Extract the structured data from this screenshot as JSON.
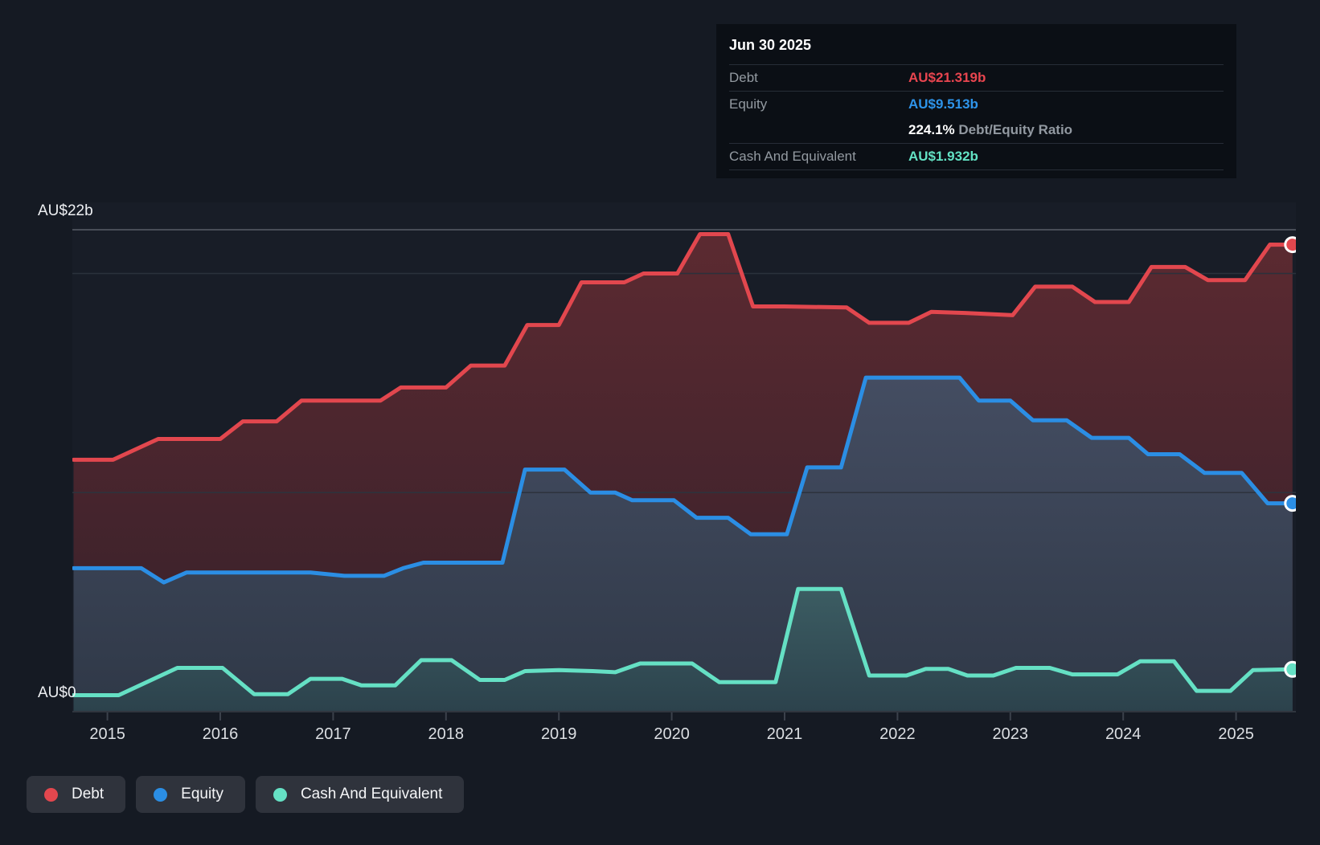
{
  "tooltip": {
    "date": "Jun 30 2025",
    "rows": [
      {
        "label": "Debt",
        "value": "AU$21.319b"
      },
      {
        "label": "Equity",
        "value": "AU$9.513b"
      },
      {
        "label": "Cash And Equivalent",
        "value": "AU$1.932b"
      }
    ],
    "ratio": {
      "value": "224.1%",
      "suffix": " Debt/Equity Ratio"
    }
  },
  "legend": {
    "items": [
      {
        "label": "Debt"
      },
      {
        "label": "Equity"
      },
      {
        "label": "Cash And Equivalent"
      }
    ]
  },
  "chart_data": {
    "type": "area",
    "x_ticks": [
      2015,
      2016,
      2017,
      2018,
      2019,
      2020,
      2021,
      2022,
      2023,
      2024,
      2025
    ],
    "x_range": [
      2014.7,
      2025.5
    ],
    "y_axis": {
      "labels": [
        {
          "value": 22,
          "text": "AU$22b"
        },
        {
          "value": 0,
          "text": "AU$0"
        }
      ],
      "gridline_values": [
        22,
        20,
        10,
        0
      ],
      "ylim": [
        0,
        22
      ]
    },
    "series": [
      {
        "name": "Debt",
        "color": "#e2474e",
        "fill_top": "#5c2a31",
        "fill_bottom": "#34202a",
        "end_label": "AU$21.319b",
        "points": [
          [
            2014.7,
            11.5
          ],
          [
            2015.05,
            11.5
          ],
          [
            2015.45,
            12.45
          ],
          [
            2016.0,
            12.45
          ],
          [
            2016.2,
            13.25
          ],
          [
            2016.5,
            13.25
          ],
          [
            2016.72,
            14.2
          ],
          [
            2017.42,
            14.2
          ],
          [
            2017.6,
            14.8
          ],
          [
            2018.0,
            14.8
          ],
          [
            2018.22,
            15.8
          ],
          [
            2018.52,
            15.8
          ],
          [
            2018.72,
            17.65
          ],
          [
            2019.0,
            17.65
          ],
          [
            2019.2,
            19.6
          ],
          [
            2019.58,
            19.6
          ],
          [
            2019.75,
            20.0
          ],
          [
            2020.05,
            20.0
          ],
          [
            2020.25,
            21.8
          ],
          [
            2020.5,
            21.8
          ],
          [
            2020.72,
            18.5
          ],
          [
            2021.0,
            18.5
          ],
          [
            2021.55,
            18.45
          ],
          [
            2021.75,
            17.75
          ],
          [
            2022.1,
            17.75
          ],
          [
            2022.3,
            18.25
          ],
          [
            2022.6,
            18.2
          ],
          [
            2023.02,
            18.1
          ],
          [
            2023.22,
            19.4
          ],
          [
            2023.55,
            19.4
          ],
          [
            2023.75,
            18.7
          ],
          [
            2024.05,
            18.7
          ],
          [
            2024.25,
            20.3
          ],
          [
            2024.55,
            20.3
          ],
          [
            2024.75,
            19.7
          ],
          [
            2025.08,
            19.7
          ],
          [
            2025.3,
            21.32
          ],
          [
            2025.5,
            21.319
          ]
        ]
      },
      {
        "name": "Equity",
        "color": "#2b8ee4",
        "fill_top": "#454e63",
        "fill_bottom": "#2f3847",
        "end_label": "AU$9.513b",
        "points": [
          [
            2014.7,
            6.55
          ],
          [
            2015.3,
            6.55
          ],
          [
            2015.5,
            5.9
          ],
          [
            2015.7,
            6.35
          ],
          [
            2016.8,
            6.35
          ],
          [
            2017.1,
            6.2
          ],
          [
            2017.45,
            6.2
          ],
          [
            2017.62,
            6.55
          ],
          [
            2017.8,
            6.8
          ],
          [
            2018.5,
            6.8
          ],
          [
            2018.7,
            11.05
          ],
          [
            2019.05,
            11.05
          ],
          [
            2019.28,
            10.0
          ],
          [
            2019.5,
            10.0
          ],
          [
            2019.65,
            9.65
          ],
          [
            2020.02,
            9.65
          ],
          [
            2020.22,
            8.85
          ],
          [
            2020.5,
            8.85
          ],
          [
            2020.7,
            8.1
          ],
          [
            2021.02,
            8.1
          ],
          [
            2021.2,
            11.15
          ],
          [
            2021.5,
            11.15
          ],
          [
            2021.72,
            15.25
          ],
          [
            2022.55,
            15.25
          ],
          [
            2022.72,
            14.2
          ],
          [
            2023.0,
            14.2
          ],
          [
            2023.2,
            13.3
          ],
          [
            2023.5,
            13.3
          ],
          [
            2023.72,
            12.5
          ],
          [
            2024.05,
            12.5
          ],
          [
            2024.22,
            11.75
          ],
          [
            2024.5,
            11.75
          ],
          [
            2024.72,
            10.9
          ],
          [
            2025.05,
            10.9
          ],
          [
            2025.28,
            9.513
          ],
          [
            2025.5,
            9.513
          ]
        ]
      },
      {
        "name": "Cash And Equivalent",
        "color": "#65e0c4",
        "fill_top": "#3c5d63",
        "fill_bottom": "#2c424c",
        "end_label": "AU$1.932b",
        "points": [
          [
            2014.7,
            0.75
          ],
          [
            2015.1,
            0.75
          ],
          [
            2015.62,
            2.0
          ],
          [
            2016.02,
            2.0
          ],
          [
            2016.3,
            0.8
          ],
          [
            2016.6,
            0.8
          ],
          [
            2016.8,
            1.5
          ],
          [
            2017.08,
            1.5
          ],
          [
            2017.25,
            1.2
          ],
          [
            2017.55,
            1.2
          ],
          [
            2017.78,
            2.35
          ],
          [
            2018.05,
            2.35
          ],
          [
            2018.3,
            1.45
          ],
          [
            2018.52,
            1.45
          ],
          [
            2018.7,
            1.85
          ],
          [
            2019.0,
            1.9
          ],
          [
            2019.3,
            1.85
          ],
          [
            2019.5,
            1.8
          ],
          [
            2019.72,
            2.2
          ],
          [
            2020.18,
            2.2
          ],
          [
            2020.42,
            1.35
          ],
          [
            2020.92,
            1.35
          ],
          [
            2021.12,
            5.6
          ],
          [
            2021.5,
            5.6
          ],
          [
            2021.75,
            1.65
          ],
          [
            2022.08,
            1.65
          ],
          [
            2022.25,
            1.95
          ],
          [
            2022.45,
            1.95
          ],
          [
            2022.62,
            1.65
          ],
          [
            2022.85,
            1.65
          ],
          [
            2023.05,
            2.0
          ],
          [
            2023.35,
            2.0
          ],
          [
            2023.55,
            1.7
          ],
          [
            2023.95,
            1.7
          ],
          [
            2024.15,
            2.3
          ],
          [
            2024.45,
            2.3
          ],
          [
            2024.65,
            0.95
          ],
          [
            2024.95,
            0.95
          ],
          [
            2025.15,
            1.9
          ],
          [
            2025.5,
            1.932
          ]
        ]
      }
    ]
  }
}
